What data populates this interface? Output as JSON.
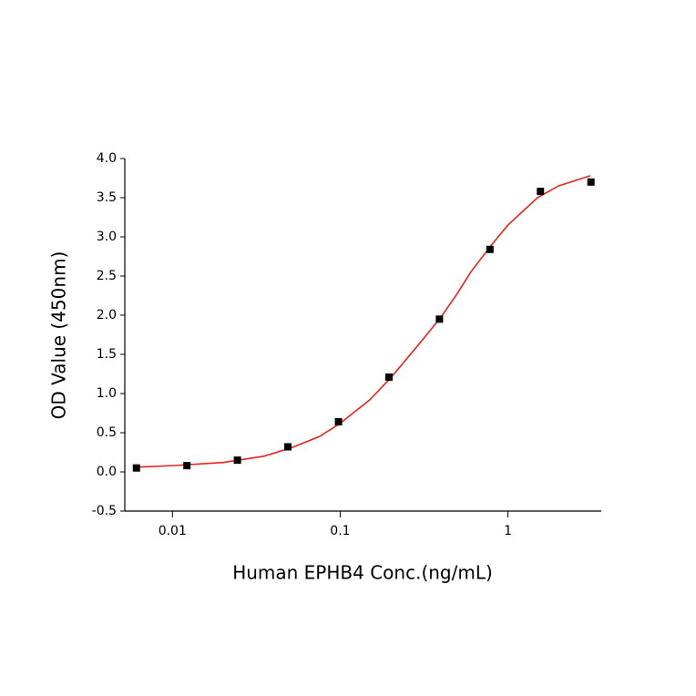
{
  "chart_data": {
    "type": "scatter",
    "x_label": "Human EPHB4 Conc.(ng/mL)",
    "y_label": "OD Value (450nm)",
    "xscale": "log",
    "xlim": [
      0.0052,
      3.6
    ],
    "ylim": [
      -0.5,
      4.0
    ],
    "xticks": [
      0.01,
      0.1,
      1
    ],
    "yticks": [
      -0.5,
      {
        "value": 0,
        "label": "0.0"
      },
      0.5,
      {
        "value": 1,
        "label": "1.0"
      },
      1.5,
      {
        "value": 2,
        "label": "2.0"
      },
      2.5,
      {
        "value": 3,
        "label": "3.0"
      },
      3.5,
      {
        "value": 4,
        "label": "4.0"
      }
    ],
    "series": [
      {
        "type": "scatter",
        "color": "#000000",
        "x": [
          0.0061,
          0.0122,
          0.0244,
          0.0488,
          0.0977,
          0.1953,
          0.3906,
          0.7813,
          1.5625,
          3.125
        ],
        "values": [
          0.05,
          0.08,
          0.15,
          0.32,
          0.64,
          1.21,
          1.95,
          2.84,
          3.58,
          3.7
        ]
      },
      {
        "type": "line",
        "color": "#e8231e",
        "x": [
          0.0061,
          0.01,
          0.02,
          0.035,
          0.05,
          0.075,
          0.1,
          0.15,
          0.2,
          0.3,
          0.4,
          0.5,
          0.6,
          0.8,
          1,
          1.5,
          2,
          3.1
        ],
        "values": [
          0.06,
          0.08,
          0.12,
          0.2,
          0.3,
          0.45,
          0.62,
          0.92,
          1.2,
          1.65,
          1.98,
          2.28,
          2.55,
          2.9,
          3.15,
          3.5,
          3.65,
          3.78
        ]
      }
    ]
  }
}
